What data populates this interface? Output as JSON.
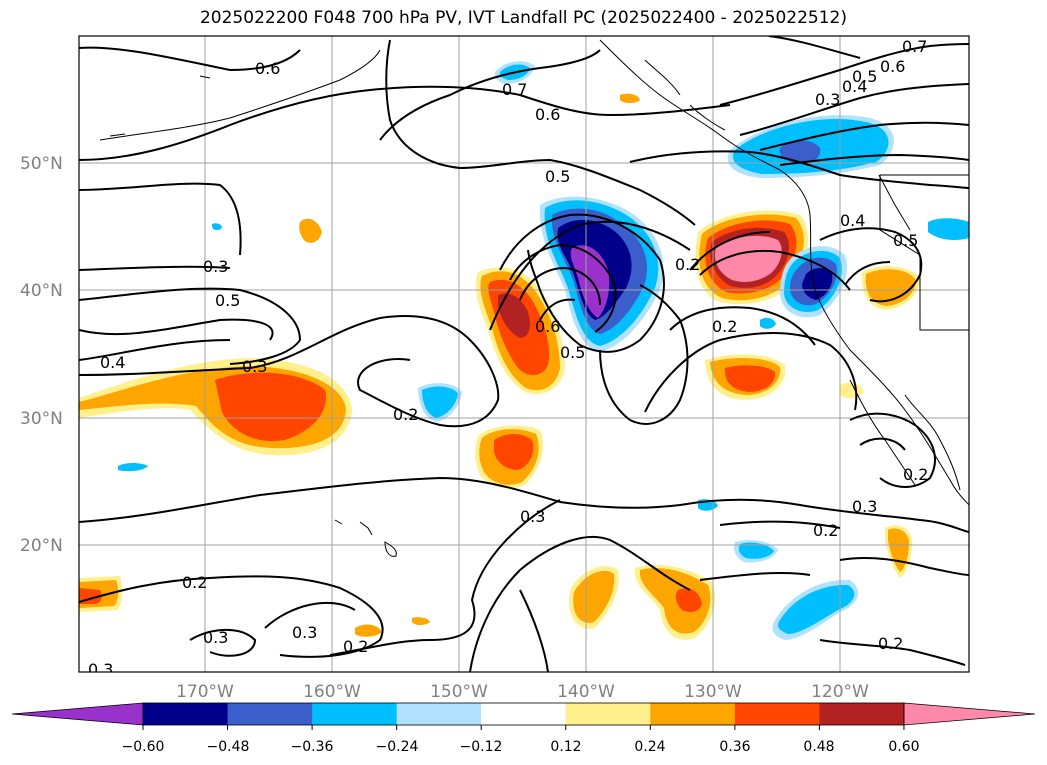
{
  "title": "2025022200 F048 700 hPa PV, IVT Landfall PC (2025022400 - 2025022512)",
  "map": {
    "lat_labels": [
      "50°N",
      "40°N",
      "30°N",
      "20°N"
    ],
    "lon_labels": [
      "170°W",
      "160°W",
      "150°W",
      "140°W",
      "130°W",
      "120°W"
    ],
    "contour_labels": [
      "0.6",
      "0.7",
      "0.6",
      "0.5",
      "0.7",
      "0.6",
      "0.5",
      "0.4",
      "0.3",
      "0.4",
      "0.3",
      "0.5",
      "0.4",
      "0.6",
      "0.5",
      "0.2",
      "0.2",
      "0.5",
      "0.3",
      "0.2",
      "0.2",
      "0.3",
      "0.2",
      "0.3",
      "0.2",
      "0.3",
      "0.3",
      "0.2",
      "0.2",
      "0.3"
    ]
  },
  "colorbar": {
    "tick_labels": [
      "−0.60",
      "−0.48",
      "−0.36",
      "−0.24",
      "−0.12",
      "0.12",
      "0.24",
      "0.36",
      "0.48",
      "0.60"
    ],
    "colors": [
      "#9932cc",
      "#00008b",
      "#3a5fcd",
      "#00bfff",
      "#b0e2ff",
      "#ffffff",
      "#fff08c",
      "#ffa500",
      "#ff4500",
      "#b22222",
      "#ff88aa"
    ]
  }
}
